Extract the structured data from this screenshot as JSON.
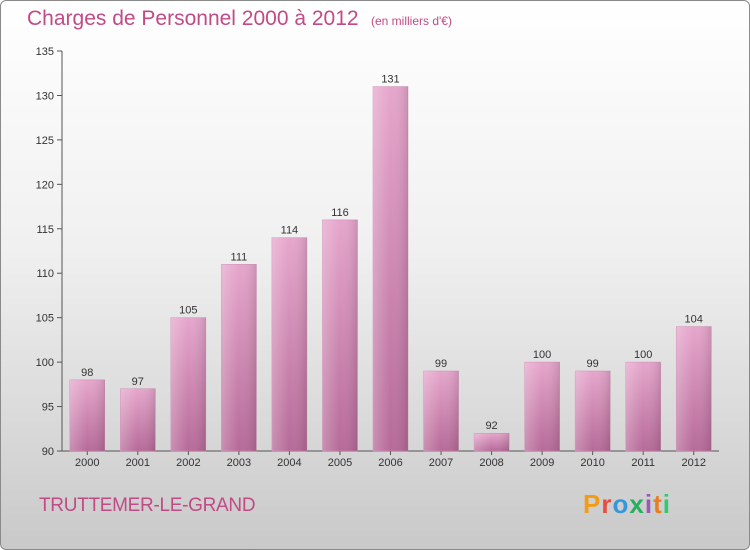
{
  "header": {
    "title": "Charges de Personnel 2000 à 2012",
    "subtitle": "(en milliers d'€)"
  },
  "footer": {
    "commune": "TRUTTEMER-LE-GRAND",
    "logo": "Proxiti",
    "logo_colors": [
      "#f39c12",
      "#e74c3c",
      "#3498db",
      "#27ae60",
      "#9b59b6",
      "#e67e22",
      "#2ecc71"
    ]
  },
  "chart_data": {
    "type": "bar",
    "categories": [
      "2000",
      "2001",
      "2002",
      "2003",
      "2004",
      "2005",
      "2006",
      "2007",
      "2008",
      "2009",
      "2010",
      "2011",
      "2012"
    ],
    "values": [
      98,
      97,
      105,
      111,
      114,
      116,
      131,
      99,
      92,
      100,
      99,
      100,
      104
    ],
    "title": "Charges de Personnel 2000 à 2012",
    "subtitle": "(en milliers d'€)",
    "xlabel": "",
    "ylabel": "",
    "ylim": [
      90,
      135
    ],
    "yticks": [
      90,
      95,
      100,
      105,
      110,
      115,
      120,
      125,
      130,
      135
    ],
    "grid": false,
    "bar_color": "#d88fb9",
    "text_color": "#c24a86"
  }
}
